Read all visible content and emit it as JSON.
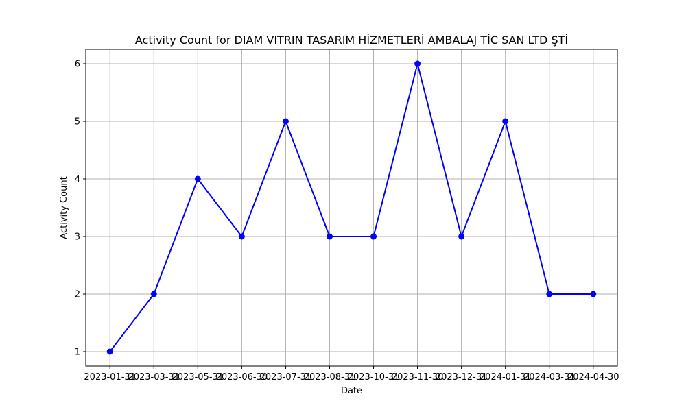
{
  "chart_data": {
    "type": "line",
    "title": "Activity Count for DIAM VITRIN TASARIM HİZMETLERİ AMBALAJ TİC SAN LTD ŞTİ",
    "xlabel": "Date",
    "ylabel": "Activity Count",
    "x": [
      "2023-01-31",
      "2023-03-31",
      "2023-05-31",
      "2023-06-30",
      "2023-07-31",
      "2023-08-31",
      "2023-10-31",
      "2023-11-30",
      "2023-12-31",
      "2024-01-31",
      "2024-03-31",
      "2024-04-30"
    ],
    "series": [
      {
        "values": [
          1,
          2,
          4,
          3,
          5,
          3,
          3,
          6,
          3,
          5,
          2,
          2
        ],
        "color": "#0000ff",
        "marker": "circle"
      }
    ],
    "y_ticks": [
      1,
      2,
      3,
      4,
      5,
      6
    ],
    "ylim": [
      0.75,
      6.25
    ],
    "x_axis_style": "evenly spaced categorical dates",
    "grid": true,
    "grid_color": "#b0b0b0",
    "legend": "none"
  }
}
